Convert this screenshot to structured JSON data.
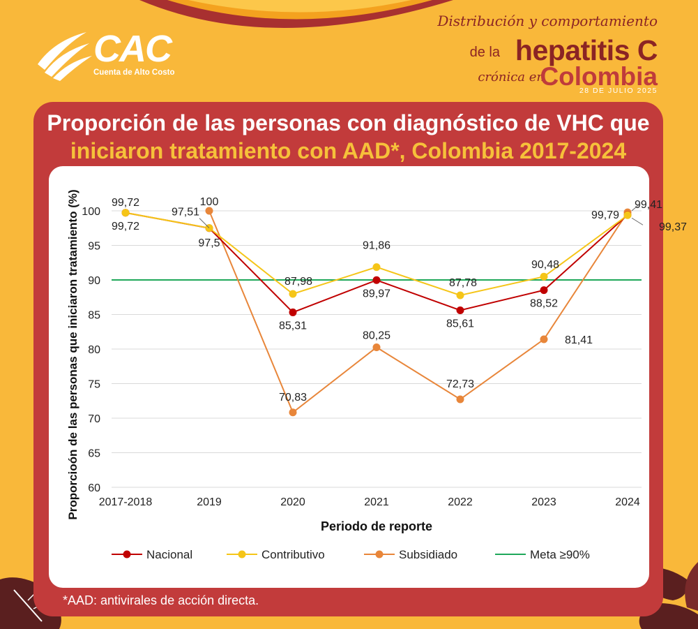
{
  "logo": {
    "name": "CAC",
    "subtitle": "Cuenta de Alto Costo"
  },
  "header": {
    "line1": "Distribución y comportamiento",
    "de_la": "de la",
    "hepatitis": "hepatitis C",
    "cronica": "crónica en",
    "colombia": "Colombia",
    "date": "28 DE JULIO 2025"
  },
  "title": {
    "line1": "Proporción de las personas con diagnóstico de VHC que",
    "line2": "iniciaron tratamiento con AAD*, Colombia 2017-2024"
  },
  "footnote": "*AAD: antivirales de acción directa.",
  "colors": {
    "background": "#f9b83a",
    "panel": "#c23b3b",
    "nacional": "#c00000",
    "contributivo": "#f5c518",
    "subsidiado": "#e8863a",
    "meta": "#1fa85a"
  },
  "chart_data": {
    "type": "line",
    "xlabel": "Periodo de reporte",
    "ylabel": "Proporcioón de las personas que iniciaron tratamiento (%)",
    "categories": [
      "2017-2018",
      "2019",
      "2020",
      "2021",
      "2022",
      "2023",
      "2024"
    ],
    "ylim": [
      60,
      100
    ],
    "yticks": [
      60,
      65,
      70,
      75,
      80,
      85,
      90,
      95,
      100
    ],
    "grid": true,
    "legend_position": "bottom",
    "series": [
      {
        "name": "Nacional",
        "values": [
          99.72,
          97.5,
          85.31,
          89.97,
          85.61,
          88.52,
          99.41
        ],
        "labels": [
          "99,72",
          "97,5",
          "85,31",
          "89,97",
          "85,61",
          "88,52",
          "99,41"
        ]
      },
      {
        "name": "Contributivo",
        "values": [
          99.72,
          97.51,
          87.98,
          91.86,
          87.78,
          90.48,
          99.37
        ],
        "labels": [
          "",
          "97,51",
          "87,98",
          "91,86",
          "87,78",
          "90,48",
          "99,37"
        ]
      },
      {
        "name": "Subsidiado",
        "values": [
          null,
          100,
          70.83,
          80.25,
          72.73,
          81.41,
          99.79
        ],
        "labels": [
          "",
          "100",
          "70,83",
          "80,25",
          "72,73",
          "81,41",
          "99,79"
        ]
      }
    ],
    "reference_line": {
      "name": "Meta ≥90%",
      "value": 90
    }
  }
}
